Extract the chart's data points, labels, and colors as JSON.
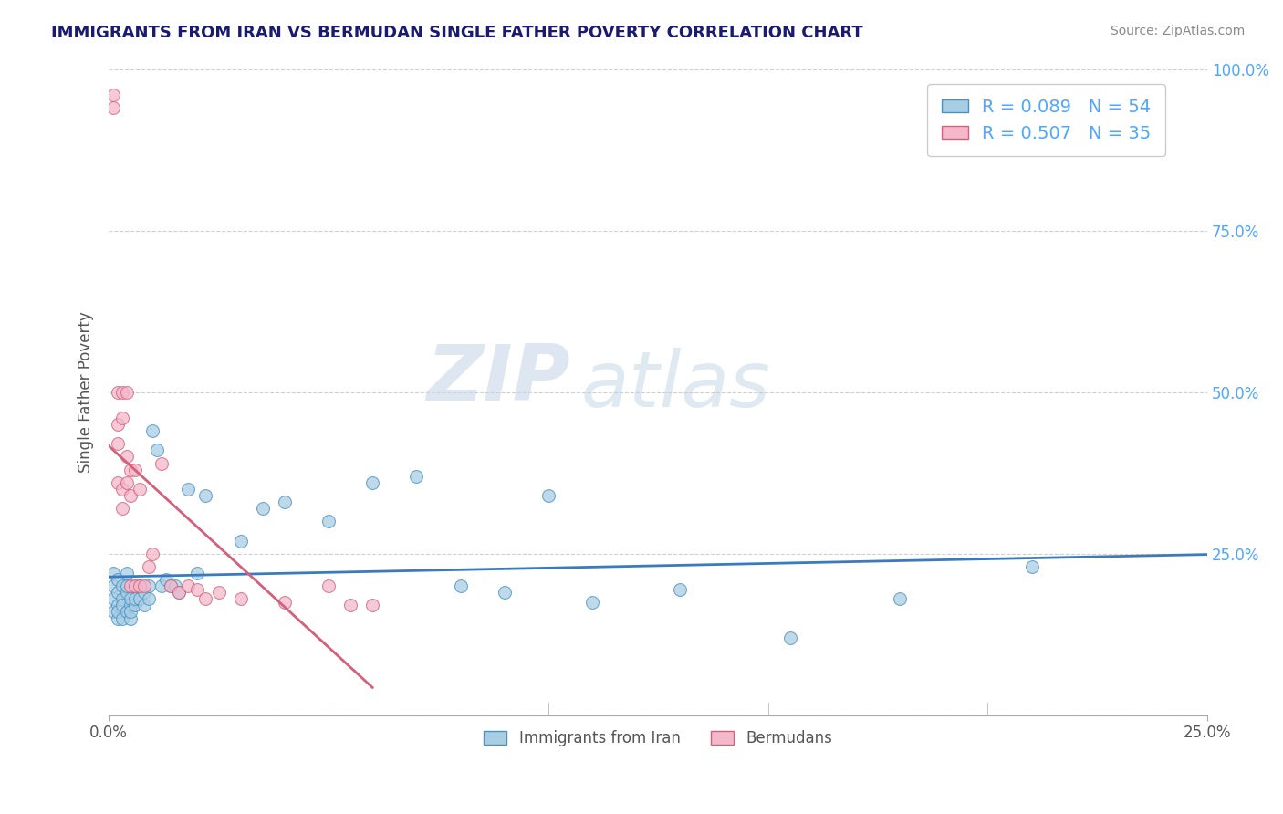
{
  "title": "IMMIGRANTS FROM IRAN VS BERMUDAN SINGLE FATHER POVERTY CORRELATION CHART",
  "source": "Source: ZipAtlas.com",
  "ylabel": "Single Father Poverty",
  "xlim": [
    0.0,
    0.25
  ],
  "ylim": [
    0.0,
    1.0
  ],
  "xtick_positions": [
    0.0,
    0.25
  ],
  "xtick_labels": [
    "0.0%",
    "25.0%"
  ],
  "ytick_positions": [
    0.0,
    0.25,
    0.5,
    0.75,
    1.0
  ],
  "ytick_labels": [
    "",
    "25.0%",
    "50.0%",
    "75.0%",
    "100.0%"
  ],
  "blue_color": "#a8cee4",
  "pink_color": "#f4b8cb",
  "blue_edge": "#4a90c4",
  "pink_edge": "#d4607a",
  "blue_line_color": "#3a7bbf",
  "pink_line_color": "#d4607a",
  "blue_R": 0.089,
  "blue_N": 54,
  "pink_R": 0.507,
  "pink_N": 35,
  "legend_label_blue": "Immigrants from Iran",
  "legend_label_pink": "Bermudans",
  "watermark_zip": "ZIP",
  "watermark_atlas": "atlas",
  "background_color": "#ffffff",
  "title_color": "#1a1a6e",
  "ylabel_color": "#555555",
  "tick_color_right": "#4da6ff",
  "legend_text_color": "#4da6ff",
  "grid_color": "#d0d0d0",
  "blue_x": [
    0.001,
    0.001,
    0.001,
    0.001,
    0.002,
    0.002,
    0.002,
    0.002,
    0.002,
    0.003,
    0.003,
    0.003,
    0.003,
    0.004,
    0.004,
    0.004,
    0.004,
    0.005,
    0.005,
    0.005,
    0.005,
    0.006,
    0.006,
    0.006,
    0.007,
    0.007,
    0.008,
    0.008,
    0.009,
    0.009,
    0.01,
    0.011,
    0.012,
    0.013,
    0.014,
    0.015,
    0.016,
    0.018,
    0.02,
    0.022,
    0.03,
    0.035,
    0.04,
    0.05,
    0.06,
    0.07,
    0.08,
    0.09,
    0.1,
    0.11,
    0.13,
    0.155,
    0.18,
    0.21
  ],
  "blue_y": [
    0.18,
    0.2,
    0.16,
    0.22,
    0.17,
    0.15,
    0.19,
    0.21,
    0.16,
    0.18,
    0.2,
    0.15,
    0.17,
    0.19,
    0.16,
    0.22,
    0.2,
    0.17,
    0.15,
    0.18,
    0.16,
    0.2,
    0.17,
    0.18,
    0.2,
    0.18,
    0.19,
    0.17,
    0.18,
    0.2,
    0.44,
    0.41,
    0.2,
    0.21,
    0.2,
    0.2,
    0.19,
    0.35,
    0.22,
    0.34,
    0.27,
    0.32,
    0.33,
    0.3,
    0.36,
    0.37,
    0.2,
    0.19,
    0.34,
    0.175,
    0.195,
    0.12,
    0.18,
    0.23
  ],
  "pink_x": [
    0.001,
    0.001,
    0.002,
    0.002,
    0.002,
    0.002,
    0.003,
    0.003,
    0.003,
    0.003,
    0.004,
    0.004,
    0.004,
    0.005,
    0.005,
    0.005,
    0.006,
    0.006,
    0.007,
    0.007,
    0.008,
    0.009,
    0.01,
    0.012,
    0.014,
    0.016,
    0.018,
    0.02,
    0.022,
    0.025,
    0.03,
    0.04,
    0.05,
    0.055,
    0.06
  ],
  "pink_y": [
    0.96,
    0.94,
    0.5,
    0.45,
    0.42,
    0.36,
    0.5,
    0.46,
    0.35,
    0.32,
    0.5,
    0.4,
    0.36,
    0.38,
    0.34,
    0.2,
    0.38,
    0.2,
    0.35,
    0.2,
    0.2,
    0.23,
    0.25,
    0.39,
    0.2,
    0.19,
    0.2,
    0.195,
    0.18,
    0.19,
    0.18,
    0.175,
    0.2,
    0.17,
    0.17
  ]
}
